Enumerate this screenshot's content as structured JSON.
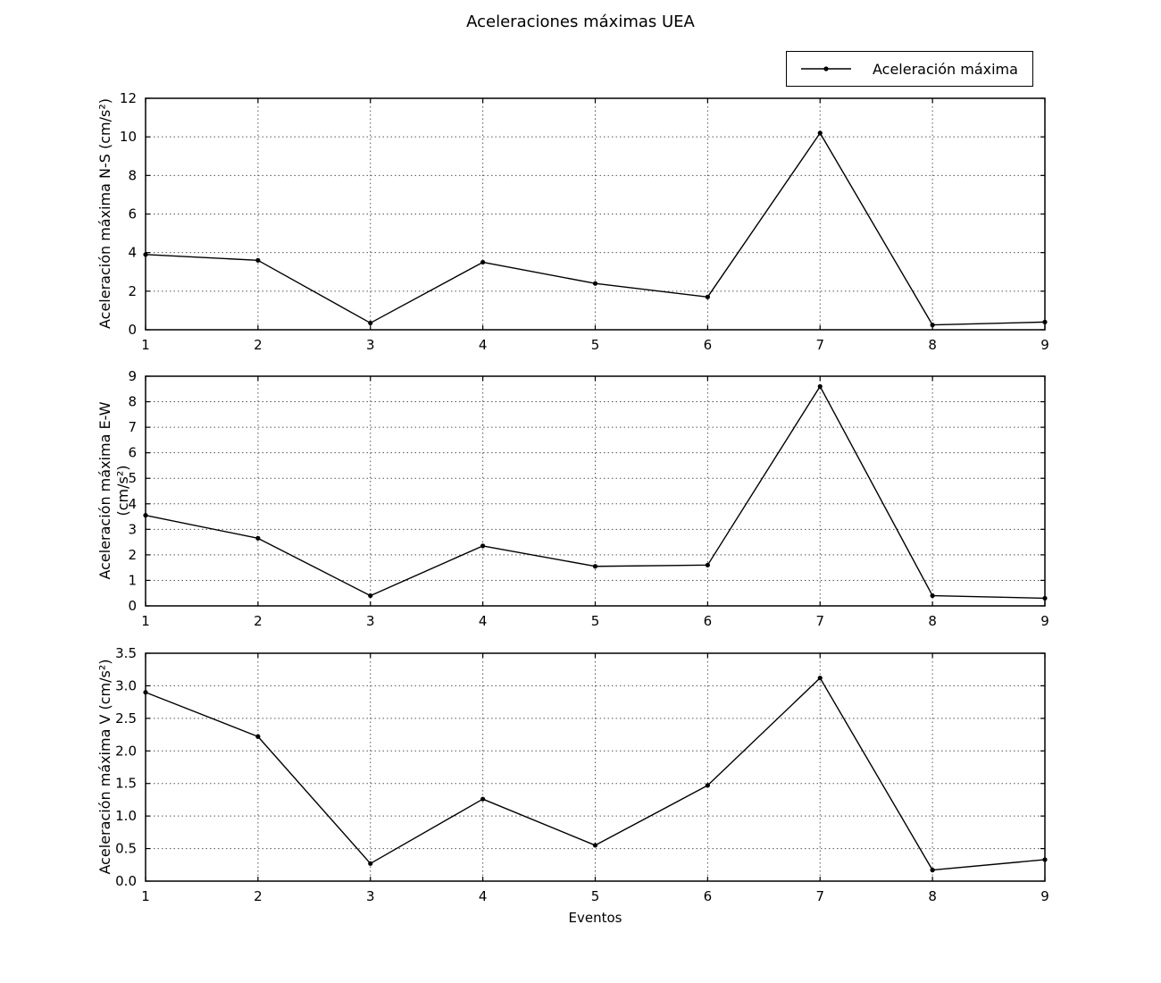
{
  "title": "Aceleraciones máximas UEA",
  "legend": {
    "label": "Aceleración máxima"
  },
  "xlabel": "Eventos",
  "colors": {
    "line": "#000000",
    "marker": "#000000",
    "grid": "#555555",
    "axis": "#000000",
    "background": "#ffffff"
  },
  "chart_data": [
    {
      "type": "line",
      "ylabel": "Aceleración máxima N-S (cm/s²)",
      "x": [
        1,
        2,
        3,
        4,
        5,
        6,
        7,
        8,
        9
      ],
      "xtick_labels": [
        "1",
        "2",
        "3",
        "4",
        "5",
        "6",
        "7",
        "8",
        "9"
      ],
      "ylim": [
        0,
        12
      ],
      "yticks": [
        0,
        2,
        4,
        6,
        8,
        10,
        12
      ],
      "ytick_labels": [
        "0",
        "2",
        "4",
        "6",
        "8",
        "10",
        "12"
      ],
      "grid": true,
      "legend_position": "above upper right",
      "series": [
        {
          "name": "Aceleración máxima",
          "values": [
            3.9,
            3.6,
            0.35,
            3.5,
            2.4,
            1.7,
            10.2,
            0.25,
            0.4
          ]
        }
      ]
    },
    {
      "type": "line",
      "ylabel": "Aceleración máxima E-W (cm/s²)",
      "x": [
        1,
        2,
        3,
        4,
        5,
        6,
        7,
        8,
        9
      ],
      "xtick_labels": [
        "1",
        "2",
        "3",
        "4",
        "5",
        "6",
        "7",
        "8",
        "9"
      ],
      "ylim": [
        0,
        9
      ],
      "yticks": [
        0,
        1,
        2,
        3,
        4,
        5,
        6,
        7,
        8,
        9
      ],
      "ytick_labels": [
        "0",
        "1",
        "2",
        "3",
        "4",
        "5",
        "6",
        "7",
        "8",
        "9"
      ],
      "grid": true,
      "series": [
        {
          "name": "Aceleración máxima",
          "values": [
            3.55,
            2.65,
            0.4,
            2.35,
            1.55,
            1.6,
            8.6,
            0.4,
            0.3
          ]
        }
      ]
    },
    {
      "type": "line",
      "ylabel": "Aceleración máxima V (cm/s²)",
      "x": [
        1,
        2,
        3,
        4,
        5,
        6,
        7,
        8,
        9
      ],
      "xtick_labels": [
        "1",
        "2",
        "3",
        "4",
        "5",
        "6",
        "7",
        "8",
        "9"
      ],
      "ylim": [
        0,
        3.5
      ],
      "yticks": [
        0,
        0.5,
        1,
        1.5,
        2,
        2.5,
        3,
        3.5
      ],
      "ytick_labels": [
        "0.0",
        "0.5",
        "1.0",
        "1.5",
        "2.0",
        "2.5",
        "3.0",
        "3.5"
      ],
      "grid": true,
      "series": [
        {
          "name": "Aceleración máxima",
          "values": [
            2.9,
            2.22,
            0.27,
            1.26,
            0.55,
            1.47,
            3.12,
            0.17,
            0.33
          ]
        }
      ]
    }
  ]
}
